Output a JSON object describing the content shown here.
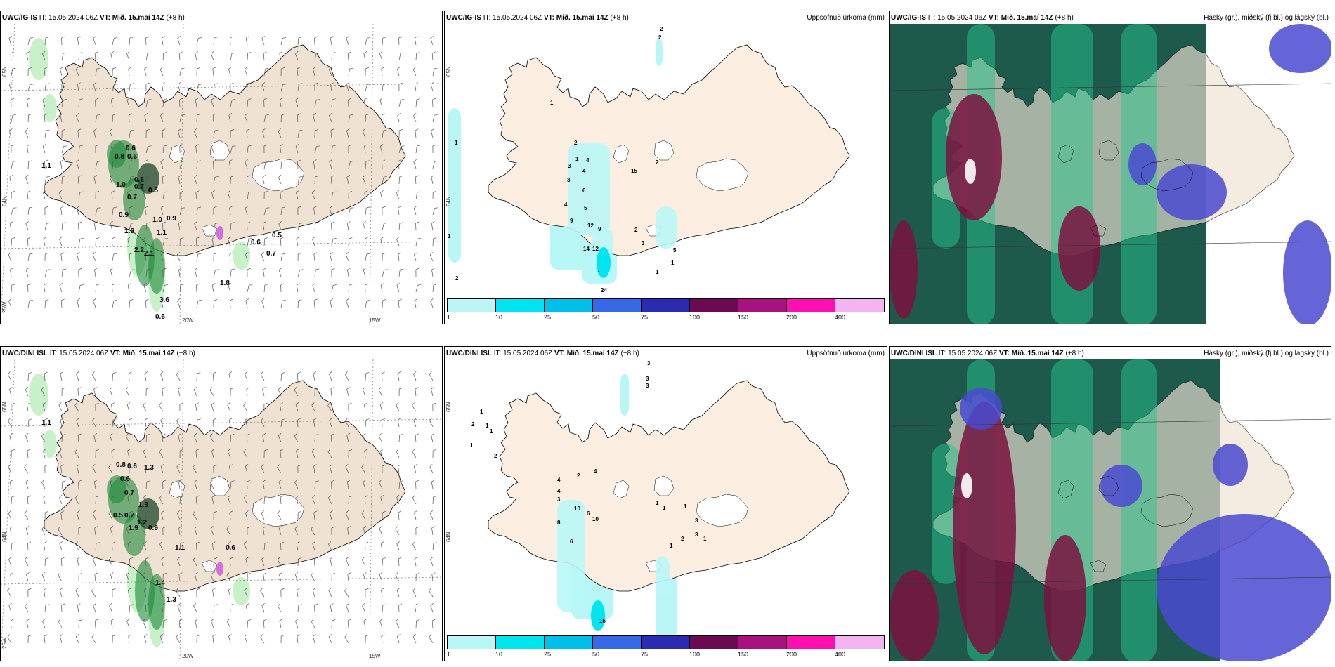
{
  "rows": [
    {
      "model": "UWC/IG-IS",
      "init": "IT: 15.05.2024 06Z",
      "vt_label": "VT:",
      "vt_value": "Mið. 15.maí 14Z",
      "lead": "(+8 h)",
      "wind_labels": [
        "1.1",
        "0.6",
        "0.8",
        "0.6",
        "0.6",
        "1.0",
        "0.7",
        "0.5",
        "0.7",
        "0.9",
        "1.0",
        "0.9",
        "1.6",
        "1.1",
        "2.2",
        "2.1",
        "0.6",
        "0.5",
        "0.7",
        "1.8",
        "3.6",
        "0.6"
      ],
      "precip_labels": [
        "2",
        "2",
        "1",
        "2",
        "1",
        "4",
        "3",
        "4",
        "3",
        "6",
        "4",
        "5",
        "9",
        "12",
        "9",
        "14",
        "12",
        "24",
        "1",
        "2",
        "3",
        "1",
        "5",
        "1",
        "15",
        "2",
        "1",
        "1",
        "2"
      ]
    },
    {
      "model": "UWC/DINI ISL",
      "init": "IT: 15.05.2024 06Z",
      "vt_label": "VT:",
      "vt_value": "Mið. 15.maí 14Z",
      "lead": "(+8 h)",
      "wind_labels": [
        "1.1",
        "0.8",
        "0.6",
        "1.3",
        "0.6",
        "0.7",
        "1.3",
        "0.5",
        "0.7",
        "1.2",
        "0.9",
        "1.9",
        "1.1",
        "0.6",
        "1.4",
        "1.3"
      ],
      "precip_labels": [
        "3",
        "3",
        "3",
        "1",
        "2",
        "1",
        "1",
        "1",
        "2",
        "4",
        "2",
        "4",
        "4",
        "3",
        "10",
        "6",
        "10",
        "8",
        "6",
        "1",
        "1",
        "1",
        "3",
        "3",
        "1",
        "2",
        "1",
        "16",
        "18"
      ]
    }
  ],
  "precip_title": "Uppsöfnuð úrkoma (mm)",
  "cloud_title": "Hásky (gr.), miðský (fj.bl.) og lágský (bl.)",
  "colorbar": {
    "colors": [
      "#b9f7f7",
      "#00e5f0",
      "#00bfe8",
      "#3569e6",
      "#2a2bb0",
      "#6b0a50",
      "#a8127f",
      "#ff0fb0",
      "#f4b4f0"
    ],
    "ticks": [
      "1",
      "10",
      "25",
      "50",
      "75",
      "100",
      "150",
      "200",
      "400"
    ]
  },
  "axis_labels": {
    "lat1": "65N",
    "lat2": "64N",
    "lon1": "25W",
    "lon2": "20W",
    "lon3": "15W"
  },
  "palette": {
    "land": "#f0e2d2",
    "land_precip": "#fcefe2",
    "glacier": "#ffffff",
    "cloud_dark": "#1d5a4c"
  }
}
